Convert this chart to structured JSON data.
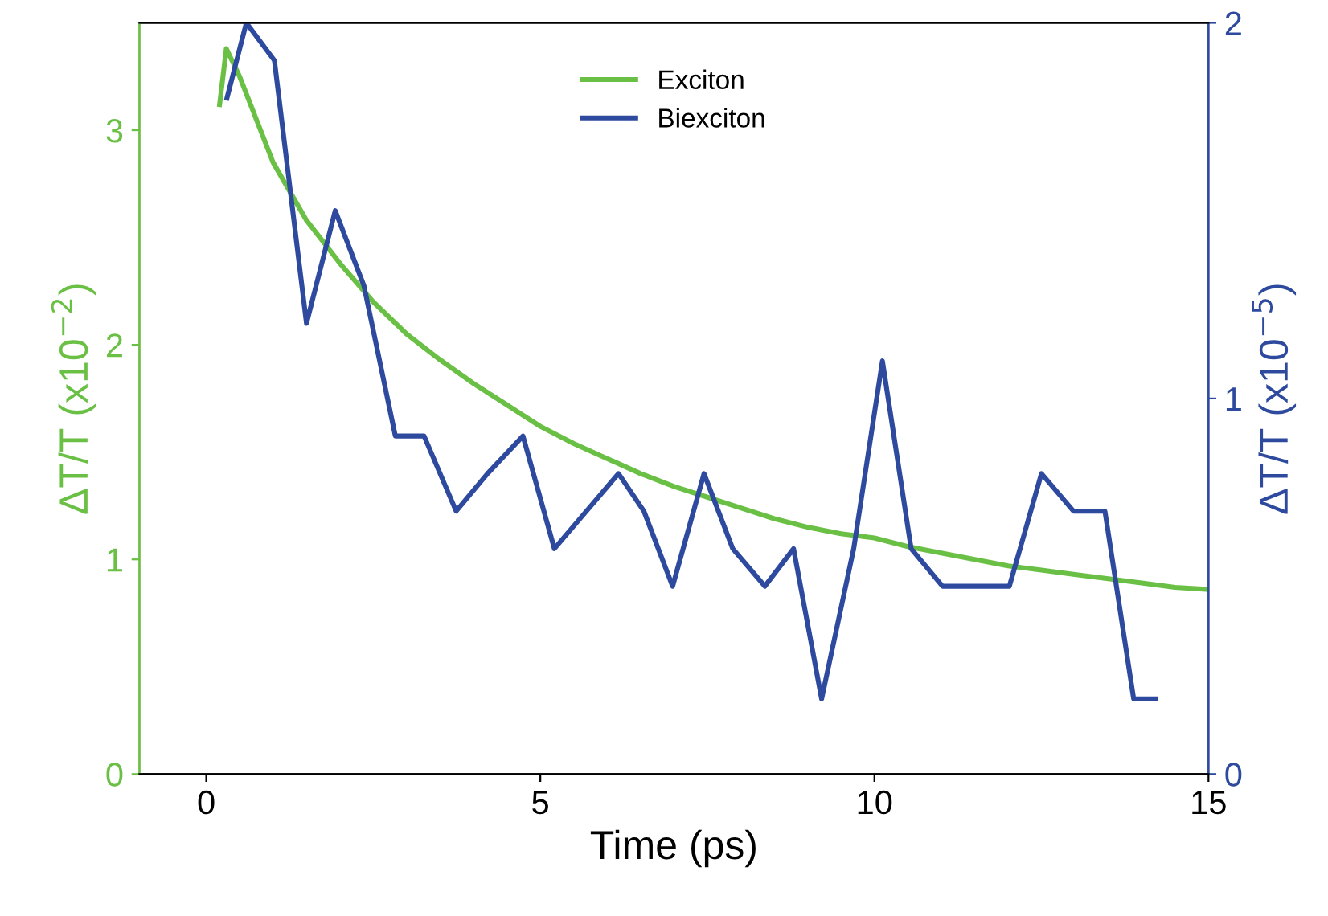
{
  "chart_data": {
    "type": "line",
    "xlabel": "Time (ps)",
    "ylabel": "ΔT/T (x10$^{−2}$)",
    "y2label": "ΔT/T (x10$^{−5}$)",
    "xlim": [
      -1,
      15
    ],
    "xticks": [
      0,
      5,
      10,
      15
    ],
    "ylim": [
      0,
      3.5
    ],
    "yticks": [
      0,
      1,
      2,
      3
    ],
    "y2lim": [
      0,
      2
    ],
    "y2ticks": [
      0,
      1,
      2
    ],
    "legend": "top",
    "grid": false,
    "series": [
      {
        "name": "Exciton",
        "color": "#6abf45",
        "x": [
          0.2,
          0.3,
          0.5,
          0.75,
          1.0,
          1.5,
          2.0,
          2.5,
          3.0,
          3.5,
          4.0,
          4.5,
          5.0,
          5.5,
          6.0,
          6.5,
          7.0,
          7.5,
          8.0,
          8.5,
          9.0,
          9.5,
          10.0,
          10.5,
          11.0,
          11.5,
          12.0,
          12.5,
          13.0,
          13.5,
          14.0,
          14.5,
          15.0
        ],
        "values": [
          3.12,
          3.38,
          3.25,
          3.05,
          2.85,
          2.58,
          2.38,
          2.2,
          2.05,
          1.93,
          1.82,
          1.72,
          1.62,
          1.54,
          1.47,
          1.4,
          1.34,
          1.29,
          1.24,
          1.19,
          1.15,
          1.12,
          1.1,
          1.06,
          1.03,
          1.0,
          0.97,
          0.95,
          0.93,
          0.91,
          0.89,
          0.87,
          0.86
        ]
      },
      {
        "name": "Biexciton",
        "color": "#2e4a9e",
        "axis": "y2",
        "x": [
          0.31,
          0.6,
          1.02,
          1.5,
          1.93,
          2.36,
          2.83,
          3.26,
          3.74,
          4.21,
          4.74,
          5.21,
          5.69,
          6.17,
          6.55,
          6.98,
          7.45,
          7.88,
          8.36,
          8.79,
          9.21,
          9.69,
          10.12,
          10.55,
          11.02,
          11.55,
          12.02,
          12.5,
          12.98,
          13.45,
          13.88,
          14.21
        ],
        "values": [
          1.8,
          2.0,
          1.9,
          1.2,
          1.5,
          1.3,
          0.9,
          0.9,
          0.7,
          0.8,
          0.9,
          0.6,
          0.7,
          0.8,
          0.7,
          0.5,
          0.8,
          0.6,
          0.5,
          0.6,
          0.2,
          0.6,
          1.1,
          0.6,
          0.5,
          0.5,
          0.5,
          0.8,
          0.7,
          0.7,
          0.2,
          0.2
        ]
      }
    ]
  }
}
